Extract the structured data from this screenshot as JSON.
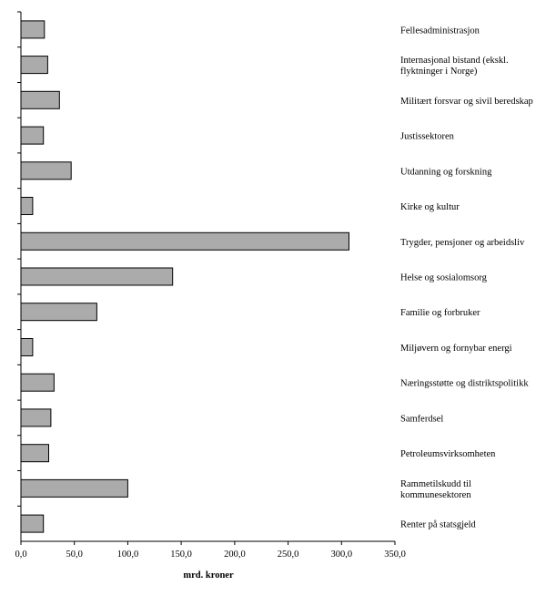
{
  "chart_data": {
    "type": "bar",
    "orientation": "horizontal",
    "categories": [
      "Fellesadministrasjon",
      "Internasjonal bistand  (ekskl. flyktninger i Norge)",
      "Militært forsvar og sivil beredskap",
      "Justissektoren",
      "Utdanning og forskning",
      "Kirke og kultur",
      "Trygder, pensjoner og arbeidsliv",
      "Helse og sosialomsorg",
      "Familie og forbruker",
      "Miljøvern og fornybar energi",
      "Næringsstøtte og distriktspolitikk",
      "Samferdsel",
      "Petroleumsvirksomheten",
      "Rammetilskudd til kommunesektoren",
      "Renter på statsgjeld"
    ],
    "category_lines": [
      [
        "Fellesadministrasjon"
      ],
      [
        "Internasjonal bistand  (ekskl.",
        "flyktninger i Norge)"
      ],
      [
        "Militært forsvar og sivil beredskap"
      ],
      [
        "Justissektoren"
      ],
      [
        "Utdanning og forskning"
      ],
      [
        "Kirke og kultur"
      ],
      [
        "Trygder, pensjoner og arbeidsliv"
      ],
      [
        "Helse og sosialomsorg"
      ],
      [
        "Familie og forbruker"
      ],
      [
        "Miljøvern og fornybar energi"
      ],
      [
        "Næringsstøtte og distriktspolitikk"
      ],
      [
        "Samferdsel"
      ],
      [
        "Petroleumsvirksomheten"
      ],
      [
        "Rammetilskudd til",
        "kommunesektoren"
      ],
      [
        "Renter på statsgjeld"
      ]
    ],
    "values": [
      22,
      25,
      36,
      21,
      47,
      11,
      307,
      142,
      71,
      11,
      31,
      28,
      26,
      100,
      21
    ],
    "xlabel": "mrd. kroner",
    "xlim": [
      0,
      350
    ],
    "ticks": [
      "0,0",
      "50,0",
      "100,0",
      "150,0",
      "200,0",
      "250,0",
      "300,0",
      "350,0"
    ],
    "grid": false,
    "bar_color": "#ababab"
  }
}
